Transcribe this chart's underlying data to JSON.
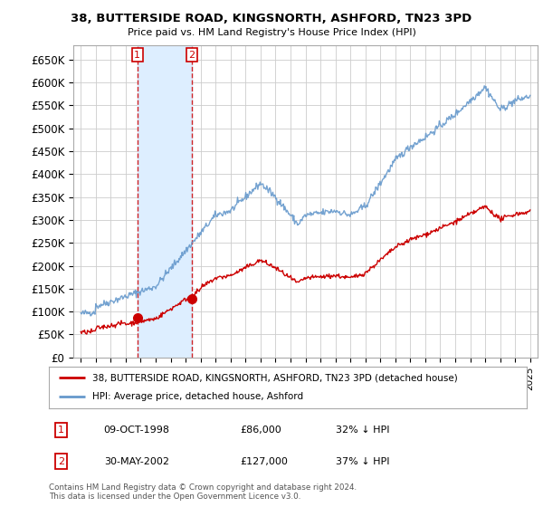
{
  "title": "38, BUTTERSIDE ROAD, KINGSNORTH, ASHFORD, TN23 3PD",
  "subtitle": "Price paid vs. HM Land Registry's House Price Index (HPI)",
  "legend_label_red": "38, BUTTERSIDE ROAD, KINGSNORTH, ASHFORD, TN23 3PD (detached house)",
  "legend_label_blue": "HPI: Average price, detached house, Ashford",
  "transaction1_date": "09-OCT-1998",
  "transaction1_price": "£86,000",
  "transaction1_hpi": "32% ↓ HPI",
  "transaction1_year": 1998.78,
  "transaction1_value": 86000,
  "transaction2_date": "30-MAY-2002",
  "transaction2_price": "£127,000",
  "transaction2_hpi": "37% ↓ HPI",
  "transaction2_year": 2002.41,
  "transaction2_value": 127000,
  "footer": "Contains HM Land Registry data © Crown copyright and database right 2024.\nThis data is licensed under the Open Government Licence v3.0.",
  "ylim": [
    0,
    680000
  ],
  "yticks": [
    0,
    50000,
    100000,
    150000,
    200000,
    250000,
    300000,
    350000,
    400000,
    450000,
    500000,
    550000,
    600000,
    650000
  ],
  "background_color": "#ffffff",
  "grid_color": "#cccccc",
  "red_color": "#cc0000",
  "blue_color": "#6699cc",
  "vline_color": "#cc0000",
  "span_color": "#ddeeff"
}
